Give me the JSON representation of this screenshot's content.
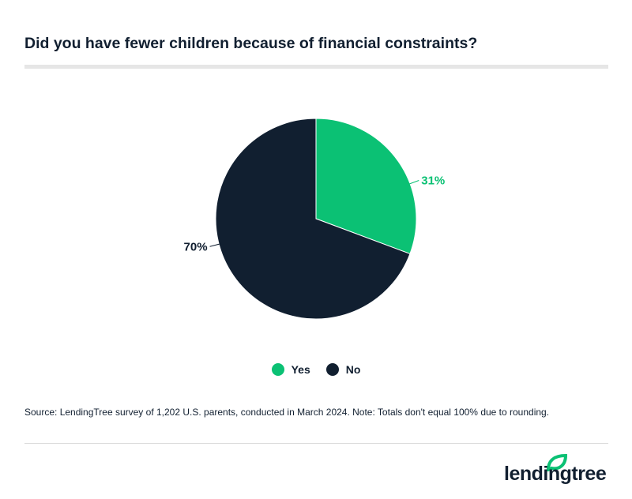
{
  "chart_data": {
    "type": "pie",
    "title": "Did you have fewer children because of financial constraints?",
    "categories": [
      "Yes",
      "No"
    ],
    "values": [
      31,
      70
    ],
    "labels": [
      "31%",
      "70%"
    ],
    "colors": [
      "#0bc174",
      "#111f30"
    ],
    "legend_position": "bottom"
  },
  "source": "Source: LendingTree survey of 1,202 U.S. parents, conducted in March 2024. Note: Totals don't equal 100% due to rounding.",
  "logo": {
    "text": "lendingtree",
    "color": "#111f30",
    "leaf_color": "#0bc174"
  }
}
